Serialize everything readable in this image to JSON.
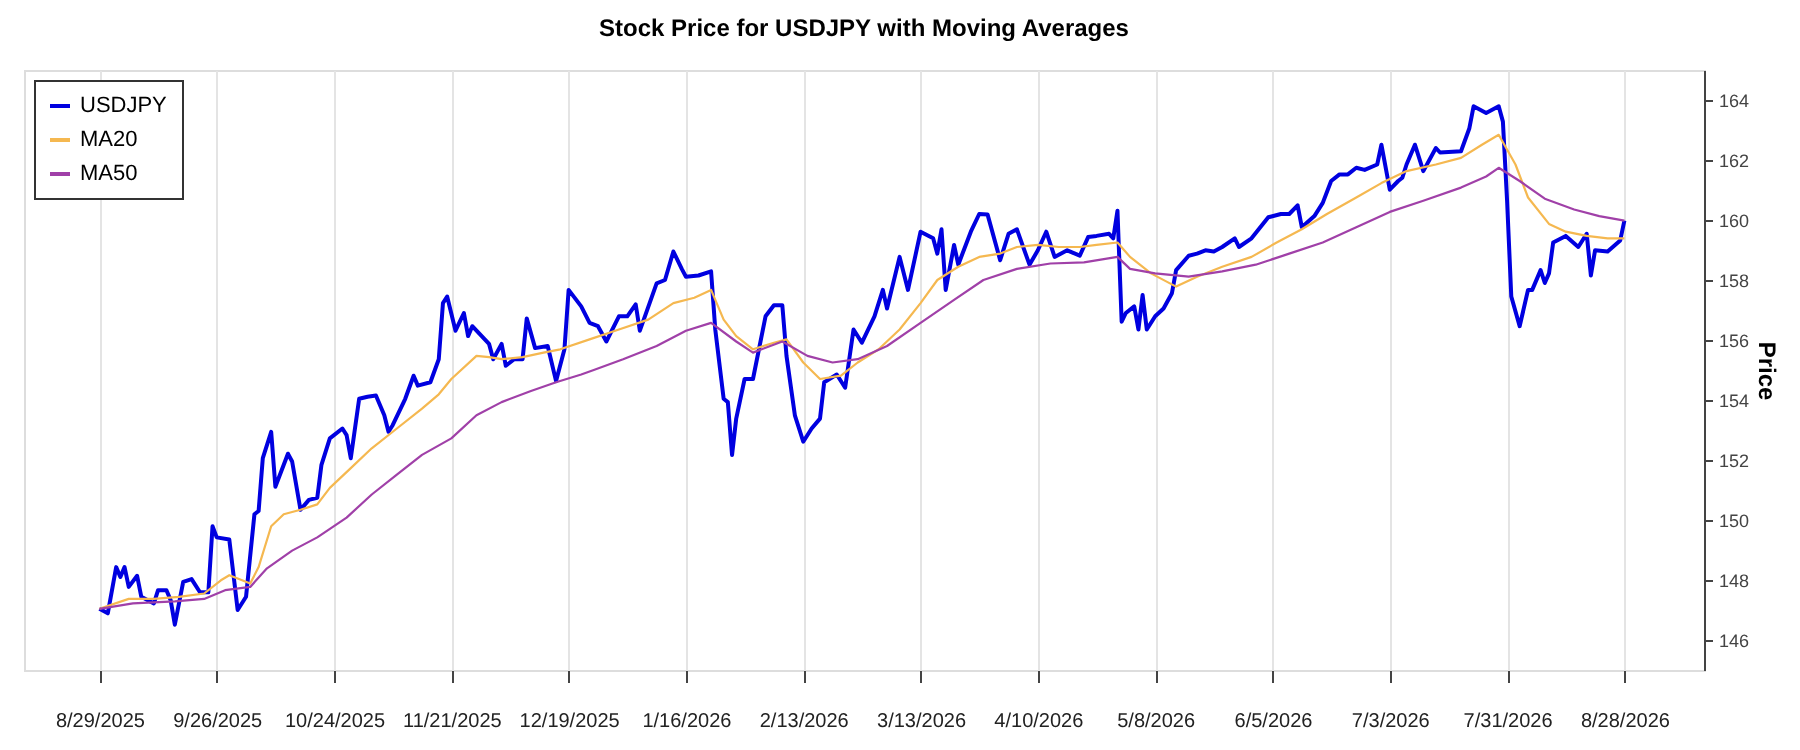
{
  "chart_data": {
    "type": "line",
    "title": "Stock Price for USDJPY with Moving Averages",
    "ylabel": "Price",
    "xlim": [
      "2025-08-11",
      "2026-09-16"
    ],
    "ylim": [
      145,
      165
    ],
    "xticks": [
      {
        "value": "2025-08-29",
        "label": "8/29/2025"
      },
      {
        "value": "2025-09-26",
        "label": "9/26/2025"
      },
      {
        "value": "2025-10-24",
        "label": "10/24/2025"
      },
      {
        "value": "2025-11-21",
        "label": "11/21/2025"
      },
      {
        "value": "2025-12-19",
        "label": "12/19/2025"
      },
      {
        "value": "2026-01-16",
        "label": "1/16/2026"
      },
      {
        "value": "2026-02-13",
        "label": "2/13/2026"
      },
      {
        "value": "2026-03-13",
        "label": "3/13/2026"
      },
      {
        "value": "2026-04-10",
        "label": "4/10/2026"
      },
      {
        "value": "2026-05-08",
        "label": "5/8/2026"
      },
      {
        "value": "2026-06-05",
        "label": "6/5/2026"
      },
      {
        "value": "2026-07-03",
        "label": "7/3/2026"
      },
      {
        "value": "2026-07-31",
        "label": "7/31/2026"
      },
      {
        "value": "2026-08-28",
        "label": "8/28/2026"
      }
    ],
    "yticks": [
      146,
      148,
      150,
      152,
      154,
      156,
      158,
      160,
      162,
      164
    ],
    "grid": "x",
    "legend": "top left",
    "series": [
      {
        "name": "USDJPY",
        "color": "#0000e0",
        "x": [
          "2025-08-29",
          "2025-08-31",
          "2025-09-02",
          "2025-09-03",
          "2025-09-04",
          "2025-09-05",
          "2025-09-07",
          "2025-09-08",
          "2025-09-11",
          "2025-09-12",
          "2025-09-14",
          "2025-09-15",
          "2025-09-16",
          "2025-09-18",
          "2025-09-20",
          "2025-09-22",
          "2025-09-24",
          "2025-09-25",
          "2025-09-26",
          "2025-09-29",
          "2025-10-01",
          "2025-10-03",
          "2025-10-05",
          "2025-10-06",
          "2025-10-07",
          "2025-10-09",
          "2025-10-10",
          "2025-10-13",
          "2025-10-14",
          "2025-10-16",
          "2025-10-18",
          "2025-10-20",
          "2025-10-21",
          "2025-10-23",
          "2025-10-26",
          "2025-10-27",
          "2025-10-28",
          "2025-10-30",
          "2025-11-01",
          "2025-11-03",
          "2025-11-05",
          "2025-11-06",
          "2025-11-07",
          "2025-11-10",
          "2025-11-12",
          "2025-11-13",
          "2025-11-16",
          "2025-11-18",
          "2025-11-19",
          "2025-11-20",
          "2025-11-22",
          "2025-11-24",
          "2025-11-25",
          "2025-11-26",
          "2025-11-30",
          "2025-12-01",
          "2025-12-03",
          "2025-12-04",
          "2025-12-06",
          "2025-12-08",
          "2025-12-09",
          "2025-12-11",
          "2025-12-14",
          "2025-12-16",
          "2025-12-18",
          "2025-12-19",
          "2025-12-22",
          "2025-12-24",
          "2025-12-26",
          "2025-12-28",
          "2025-12-31",
          "2026-01-02",
          "2026-01-04",
          "2026-01-05",
          "2026-01-09",
          "2026-01-11",
          "2026-01-13",
          "2026-01-15",
          "2026-01-16",
          "2026-01-19",
          "2026-01-22",
          "2026-01-23",
          "2026-01-25",
          "2026-01-26",
          "2026-01-27",
          "2026-01-28",
          "2026-01-30",
          "2026-02-01",
          "2026-02-04",
          "2026-02-06",
          "2026-02-08",
          "2026-02-09",
          "2026-02-11",
          "2026-02-13",
          "2026-02-15",
          "2026-02-17",
          "2026-02-18",
          "2026-02-21",
          "2026-02-23",
          "2026-02-25",
          "2026-02-27",
          "2026-03-02",
          "2026-03-04",
          "2026-03-05",
          "2026-03-08",
          "2026-03-10",
          "2026-03-13",
          "2026-03-16",
          "2026-03-17",
          "2026-03-18",
          "2026-03-19",
          "2026-03-21",
          "2026-03-22",
          "2026-03-25",
          "2026-03-27",
          "2026-03-29",
          "2026-04-01",
          "2026-04-03",
          "2026-04-05",
          "2026-04-08",
          "2026-04-10",
          "2026-04-12",
          "2026-04-14",
          "2026-04-17",
          "2026-04-20",
          "2026-04-22",
          "2026-04-24",
          "2026-04-27",
          "2026-04-28",
          "2026-04-29",
          "2026-04-30",
          "2026-05-01",
          "2026-05-03",
          "2026-05-04",
          "2026-05-05",
          "2026-05-06",
          "2026-05-08",
          "2026-05-10",
          "2026-05-12",
          "2026-05-13",
          "2026-05-16",
          "2026-05-18",
          "2026-05-20",
          "2026-05-22",
          "2026-05-24",
          "2026-05-27",
          "2026-05-28",
          "2026-05-31",
          "2026-06-04",
          "2026-06-07",
          "2026-06-09",
          "2026-06-11",
          "2026-06-12",
          "2026-06-15",
          "2026-06-17",
          "2026-06-19",
          "2026-06-21",
          "2026-06-23",
          "2026-06-25",
          "2026-06-27",
          "2026-06-30",
          "2026-07-01",
          "2026-07-03",
          "2026-07-05",
          "2026-07-06",
          "2026-07-07",
          "2026-07-09",
          "2026-07-11",
          "2026-07-14",
          "2026-07-15",
          "2026-07-20",
          "2026-07-22",
          "2026-07-23",
          "2026-07-26",
          "2026-07-29",
          "2026-07-30",
          "2026-07-31",
          "2026-08-01",
          "2026-08-03",
          "2026-08-05",
          "2026-08-06",
          "2026-08-08",
          "2026-08-09",
          "2026-08-10",
          "2026-08-11",
          "2026-08-14",
          "2026-08-17",
          "2026-08-19",
          "2026-08-20",
          "2026-08-21",
          "2026-08-24",
          "2026-08-27",
          "2026-08-28"
        ],
        "values": [
          147.04,
          146.89,
          148.43,
          148.1,
          148.43,
          147.77,
          148.14,
          147.44,
          147.22,
          147.66,
          147.66,
          147.33,
          146.51,
          147.94,
          148.03,
          147.59,
          147.59,
          149.79,
          149.42,
          149.35,
          147.0,
          147.44,
          150.19,
          150.3,
          152.06,
          152.94,
          151.11,
          152.21,
          151.95,
          150.34,
          150.67,
          150.74,
          151.84,
          152.72,
          153.05,
          152.83,
          152.06,
          154.04,
          154.11,
          154.15,
          153.49,
          152.94,
          153.16,
          154.04,
          154.81,
          154.48,
          154.59,
          155.36,
          157.23,
          157.45,
          156.31,
          156.9,
          156.13,
          156.46,
          155.87,
          155.36,
          155.87,
          155.14,
          155.36,
          155.36,
          156.72,
          155.73,
          155.8,
          154.63,
          155.69,
          157.67,
          157.12,
          156.57,
          156.46,
          155.95,
          156.79,
          156.79,
          157.19,
          156.31,
          157.89,
          158.0,
          158.95,
          158.37,
          158.11,
          158.15,
          158.29,
          156.35,
          154.04,
          153.93,
          152.17,
          153.38,
          154.7,
          154.7,
          156.79,
          157.16,
          157.16,
          155.47,
          153.49,
          152.61,
          153.05,
          153.38,
          154.59,
          154.85,
          154.41,
          156.35,
          155.91,
          156.79,
          157.67,
          157.05,
          158.77,
          157.67,
          159.61,
          159.39,
          158.88,
          159.69,
          157.67,
          159.17,
          158.51,
          159.61,
          160.2,
          160.18,
          158.66,
          159.54,
          159.69,
          158.51,
          158.99,
          159.61,
          158.77,
          158.99,
          158.81,
          159.43,
          159.47,
          159.54,
          159.39,
          160.31,
          156.61,
          156.9,
          157.12,
          156.35,
          157.5,
          156.35,
          156.79,
          157.05,
          157.56,
          158.33,
          158.81,
          158.88,
          158.99,
          158.95,
          159.1,
          159.39,
          159.1,
          159.39,
          160.09,
          160.2,
          160.2,
          160.49,
          159.76,
          160.13,
          160.57,
          161.3,
          161.52,
          161.52,
          161.74,
          161.67,
          161.85,
          162.51,
          161.01,
          161.3,
          161.41,
          161.85,
          162.51,
          161.63,
          162.4,
          162.25,
          162.29,
          163.06,
          163.79,
          163.57,
          163.79,
          163.28,
          160.64,
          157.45,
          156.46,
          157.67,
          157.67,
          158.33,
          157.9,
          158.22,
          159.25,
          159.47,
          159.1,
          159.54,
          158.15,
          158.99,
          158.95,
          159.32,
          159.98
        ]
      },
      {
        "name": "MA20",
        "color": "#f5b850",
        "x": [
          "2025-08-29",
          "2025-09-05",
          "2025-09-11",
          "2025-09-17",
          "2025-09-23",
          "2025-09-27",
          "2025-09-29",
          "2025-10-01",
          "2025-10-04",
          "2025-10-06",
          "2025-10-09",
          "2025-10-12",
          "2025-10-16",
          "2025-10-20",
          "2025-10-23",
          "2025-10-28",
          "2025-11-02",
          "2025-11-08",
          "2025-11-14",
          "2025-11-18",
          "2025-11-21",
          "2025-11-27",
          "2025-11-30",
          "2025-12-03",
          "2025-12-08",
          "2025-12-13",
          "2025-12-17",
          "2025-12-24",
          "2025-12-31",
          "2026-01-07",
          "2026-01-13",
          "2026-01-18",
          "2026-01-22",
          "2026-01-25",
          "2026-01-28",
          "2026-02-01",
          "2026-02-06",
          "2026-02-09",
          "2026-02-13",
          "2026-02-17",
          "2026-02-22",
          "2026-02-26",
          "2026-03-03",
          "2026-03-08",
          "2026-03-13",
          "2026-03-17",
          "2026-03-22",
          "2026-03-27",
          "2026-04-01",
          "2026-04-05",
          "2026-04-10",
          "2026-04-15",
          "2026-04-20",
          "2026-04-24",
          "2026-04-29",
          "2026-05-02",
          "2026-05-07",
          "2026-05-13",
          "2026-05-18",
          "2026-05-24",
          "2026-05-31",
          "2026-06-06",
          "2026-06-12",
          "2026-06-18",
          "2026-06-25",
          "2026-07-01",
          "2026-07-07",
          "2026-07-14",
          "2026-07-20",
          "2026-07-25",
          "2026-07-29",
          "2026-08-02",
          "2026-08-05",
          "2026-08-10",
          "2026-08-14",
          "2026-08-19",
          "2026-08-24",
          "2026-08-28"
        ],
        "values": [
          147.04,
          147.37,
          147.37,
          147.44,
          147.55,
          147.99,
          148.16,
          148.05,
          147.88,
          148.43,
          149.79,
          150.19,
          150.34,
          150.52,
          151.07,
          151.73,
          152.39,
          153.05,
          153.71,
          154.19,
          154.7,
          155.47,
          155.43,
          155.36,
          155.43,
          155.58,
          155.69,
          156.02,
          156.35,
          156.68,
          157.23,
          157.41,
          157.67,
          156.68,
          156.13,
          155.69,
          155.91,
          156.02,
          155.25,
          154.7,
          154.81,
          155.25,
          155.69,
          156.35,
          157.23,
          158.0,
          158.44,
          158.77,
          158.88,
          159.1,
          159.17,
          159.1,
          159.1,
          159.17,
          159.25,
          158.77,
          158.22,
          157.78,
          158.11,
          158.44,
          158.77,
          159.25,
          159.69,
          160.2,
          160.75,
          161.23,
          161.63,
          161.85,
          162.07,
          162.51,
          162.84,
          161.85,
          160.75,
          159.87,
          159.61,
          159.47,
          159.39,
          159.39
        ]
      },
      {
        "name": "MA50",
        "color": "#a040a8",
        "x": [
          "2025-08-29",
          "2025-09-06",
          "2025-09-16",
          "2025-09-23",
          "2025-09-28",
          "2025-10-04",
          "2025-10-08",
          "2025-10-14",
          "2025-10-20",
          "2025-10-27",
          "2025-11-02",
          "2025-11-08",
          "2025-11-14",
          "2025-11-21",
          "2025-11-27",
          "2025-12-03",
          "2025-12-10",
          "2025-12-16",
          "2025-12-22",
          "2025-12-25",
          "2026-01-01",
          "2026-01-09",
          "2026-01-16",
          "2026-01-22",
          "2026-01-28",
          "2026-02-01",
          "2026-02-08",
          "2026-02-14",
          "2026-02-20",
          "2026-02-26",
          "2026-03-05",
          "2026-03-13",
          "2026-03-21",
          "2026-03-28",
          "2026-04-05",
          "2026-04-13",
          "2026-04-21",
          "2026-04-29",
          "2026-05-02",
          "2026-05-08",
          "2026-05-16",
          "2026-05-24",
          "2026-06-01",
          "2026-06-09",
          "2026-06-17",
          "2026-06-25",
          "2026-07-03",
          "2026-07-11",
          "2026-07-20",
          "2026-07-26",
          "2026-07-29",
          "2026-08-03",
          "2026-08-09",
          "2026-08-16",
          "2026-08-22",
          "2026-08-28"
        ],
        "values": [
          147.04,
          147.22,
          147.29,
          147.37,
          147.66,
          147.77,
          148.39,
          148.98,
          149.42,
          150.08,
          150.85,
          151.51,
          152.17,
          152.72,
          153.49,
          153.93,
          154.3,
          154.59,
          154.85,
          155.0,
          155.36,
          155.8,
          156.31,
          156.57,
          155.95,
          155.58,
          155.95,
          155.47,
          155.25,
          155.36,
          155.8,
          156.57,
          157.34,
          158.0,
          158.37,
          158.55,
          158.59,
          158.77,
          158.37,
          158.22,
          158.11,
          158.29,
          158.51,
          158.88,
          159.25,
          159.76,
          160.27,
          160.64,
          161.08,
          161.45,
          161.74,
          161.3,
          160.71,
          160.35,
          160.13,
          159.98
        ]
      }
    ]
  }
}
